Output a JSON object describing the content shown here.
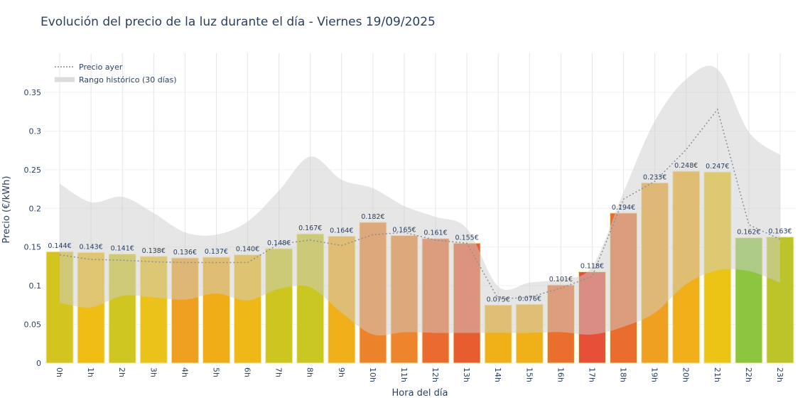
{
  "chart_data": {
    "type": "bar",
    "title": "Evolución del precio de la luz durante el día - Viernes 19/09/2025",
    "xlabel": "Hora del día",
    "ylabel": "Precio (€/kWh)",
    "ylim": [
      0,
      0.39
    ],
    "yticks": [
      0,
      0.05,
      0.1,
      0.15,
      0.2,
      0.25,
      0.3,
      0.35
    ],
    "ytick_labels": [
      "0",
      "0.05",
      "0.1",
      "0.15",
      "0.2",
      "0.25",
      "0.3",
      "0.35"
    ],
    "grid": true,
    "legend_position": "top-left",
    "categories": [
      "0h",
      "1h",
      "2h",
      "3h",
      "4h",
      "5h",
      "6h",
      "7h",
      "8h",
      "9h",
      "10h",
      "11h",
      "12h",
      "13h",
      "14h",
      "15h",
      "16h",
      "17h",
      "18h",
      "19h",
      "20h",
      "21h",
      "22h",
      "23h"
    ],
    "values": [
      0.144,
      0.143,
      0.141,
      0.138,
      0.136,
      0.137,
      0.14,
      0.148,
      0.167,
      0.164,
      0.182,
      0.165,
      0.161,
      0.155,
      0.075,
      0.076,
      0.101,
      0.118,
      0.194,
      0.233,
      0.248,
      0.247,
      0.162,
      0.163
    ],
    "data_labels": [
      "0.144€",
      "0.143€",
      "0.141€",
      "0.138€",
      "0.136€",
      "0.137€",
      "0.140€",
      "0.148€",
      "0.167€",
      "0.164€",
      "0.182€",
      "0.165€",
      "0.161€",
      "0.155€",
      "0.075€",
      "0.076€",
      "0.101€",
      "0.118€",
      "0.194€",
      "0.233€",
      "0.248€",
      "0.247€",
      "0.162€",
      "0.163€"
    ],
    "bar_colors": [
      "#d4c41f",
      "#f0bd14",
      "#cfc622",
      "#ebc21a",
      "#efa020",
      "#f0ad18",
      "#efb816",
      "#cdc621",
      "#cac723",
      "#f0ae18",
      "#ec832a",
      "#ec852b",
      "#ea6a2f",
      "#e85d30",
      "#efb018",
      "#efb018",
      "#ea6e2e",
      "#e74f38",
      "#ea6c2e",
      "#f0a020",
      "#f0ae18",
      "#ecc415",
      "#8cc63f",
      "#bcc42a"
    ],
    "series": [
      {
        "name": "Precio ayer",
        "style": "dotted",
        "color": "#8a8f96",
        "values": [
          0.14,
          0.134,
          0.133,
          0.131,
          0.13,
          0.13,
          0.13,
          0.154,
          0.159,
          0.152,
          0.166,
          0.169,
          0.159,
          0.155,
          0.083,
          0.085,
          0.097,
          0.112,
          0.212,
          0.235,
          0.276,
          0.328,
          0.179,
          0.16
        ]
      },
      {
        "name": "Rango histórico (30 días)",
        "type": "band",
        "color": "#d3d3d3",
        "upper": [
          0.232,
          0.208,
          0.215,
          0.194,
          0.169,
          0.166,
          0.183,
          0.223,
          0.267,
          0.237,
          0.226,
          0.203,
          0.189,
          0.174,
          0.099,
          0.104,
          0.109,
          0.125,
          0.221,
          0.313,
          0.367,
          0.38,
          0.299,
          0.269
        ],
        "lower": [
          0.078,
          0.072,
          0.087,
          0.085,
          0.082,
          0.09,
          0.081,
          0.096,
          0.098,
          0.065,
          0.037,
          0.04,
          0.039,
          0.039,
          0.039,
          0.039,
          0.04,
          0.037,
          0.047,
          0.065,
          0.102,
          0.12,
          0.119,
          0.104
        ]
      }
    ]
  }
}
